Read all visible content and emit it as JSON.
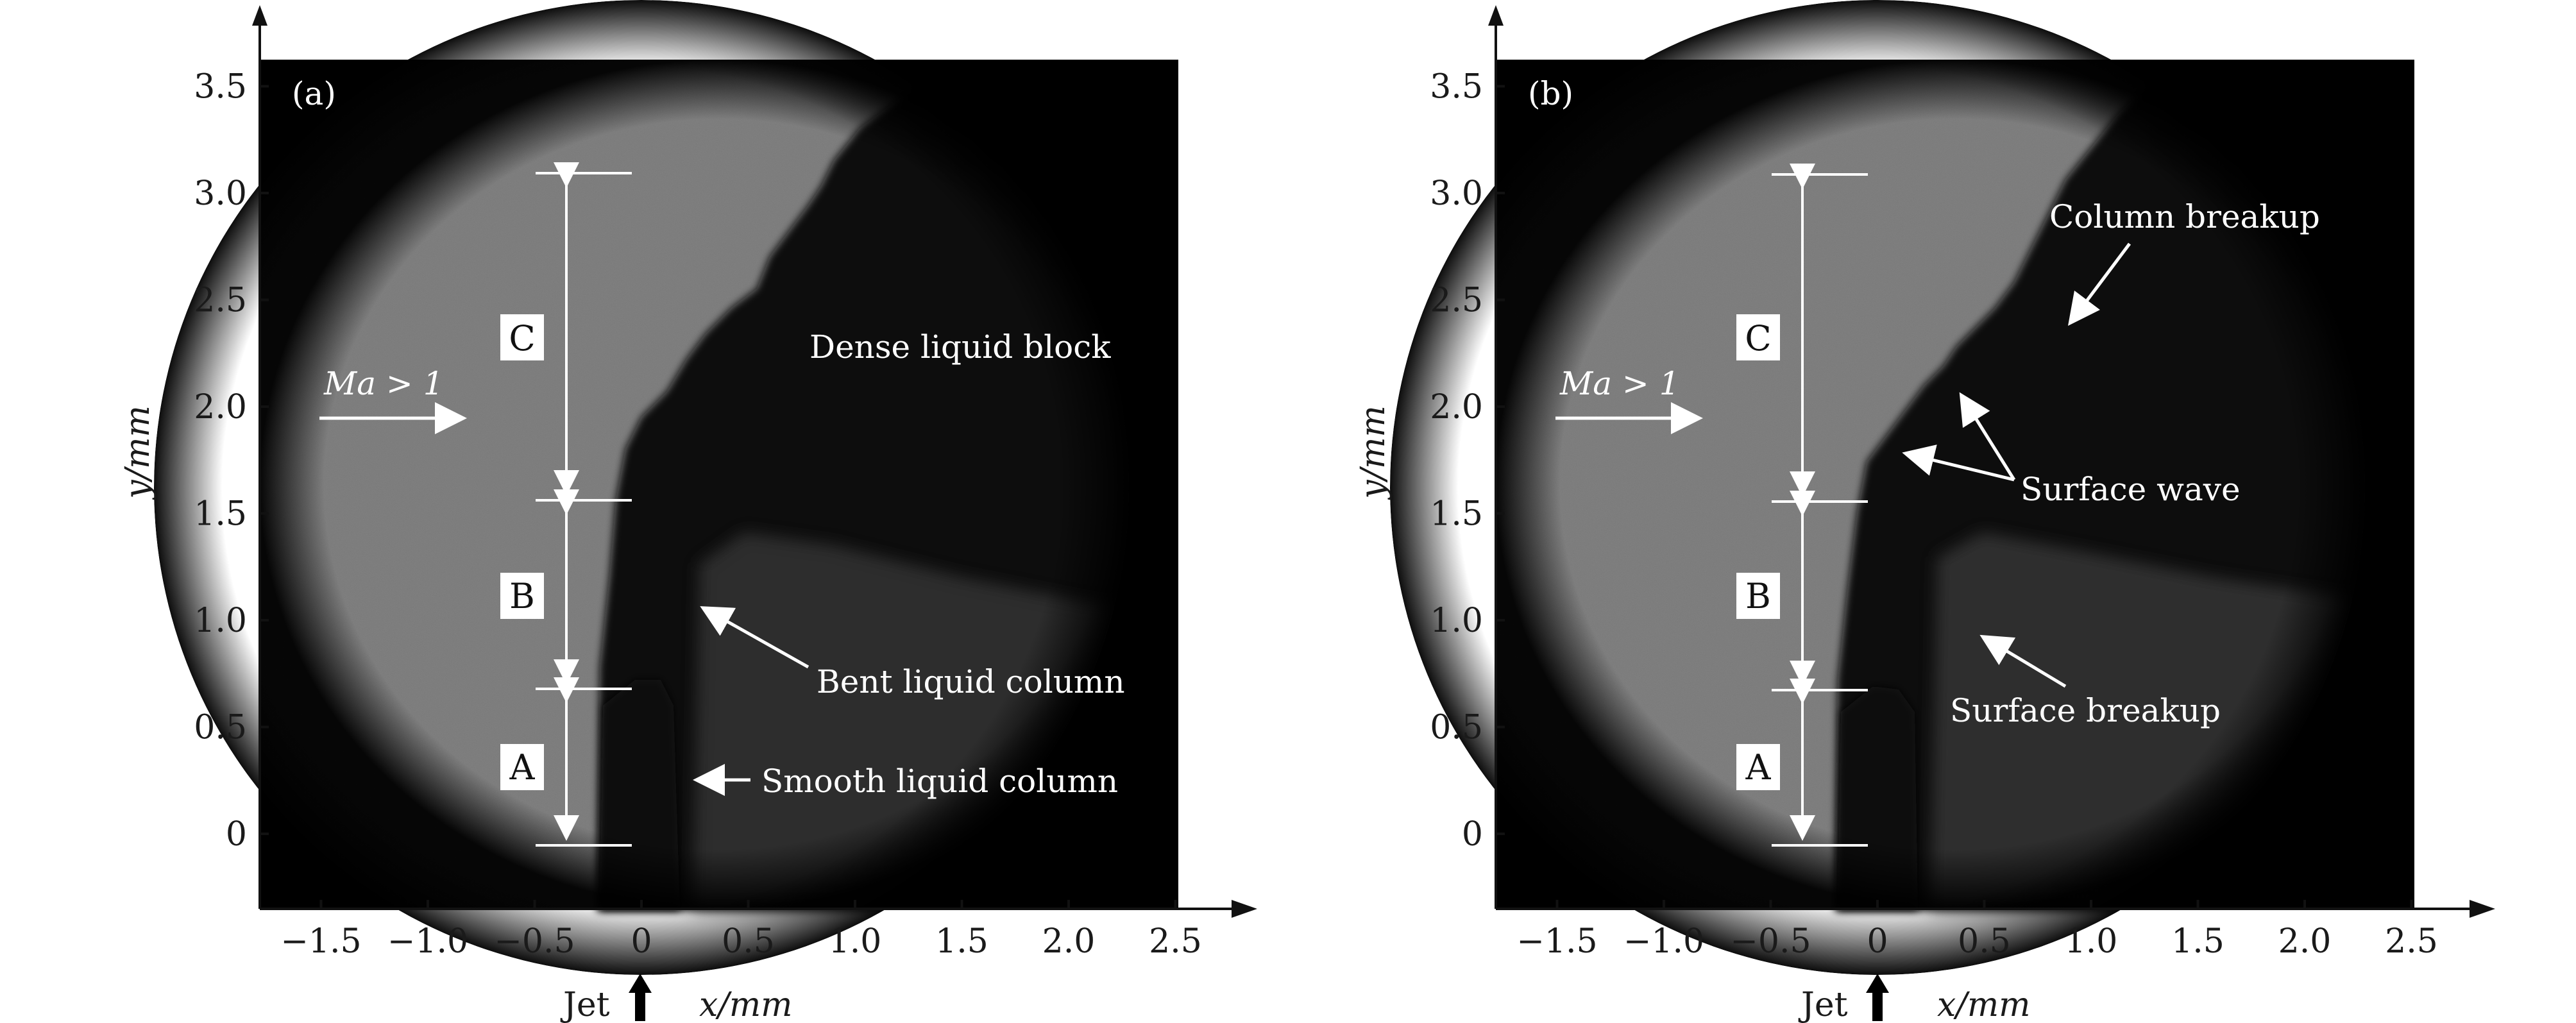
{
  "panels": [
    {
      "id": "a",
      "panel_label": "(a)",
      "ylabel": "y/mm",
      "xlabel": "x/mm",
      "jet_label": "Jet",
      "flow_label": "Ma > 1",
      "x_ticks": [
        "−1.5",
        "−1.0",
        "−0.5",
        "0",
        "0.5",
        "1.0",
        "1.5",
        "2.0",
        "2.5"
      ],
      "y_ticks": [
        "0",
        "0.5",
        "1.0",
        "1.5",
        "2.0",
        "2.5",
        "3.0",
        "3.5"
      ],
      "zones": [
        "A",
        "B",
        "C"
      ],
      "annotations": [
        "Dense liquid block",
        "Bent liquid column",
        "Smooth liquid column"
      ]
    },
    {
      "id": "b",
      "panel_label": "(b)",
      "ylabel": "y/mm",
      "xlabel": "x/mm",
      "jet_label": "Jet",
      "flow_label": "Ma > 1",
      "x_ticks": [
        "−1.5",
        "−1.0",
        "−0.5",
        "0",
        "0.5",
        "1.0",
        "1.5",
        "2.0",
        "2.5"
      ],
      "y_ticks": [
        "0",
        "0.5",
        "1.0",
        "1.5",
        "2.0",
        "2.5",
        "3.0",
        "3.5"
      ],
      "zones": [
        "A",
        "B",
        "C"
      ],
      "annotations": [
        "Column breakup",
        "Surface wave",
        "Surface breakup"
      ]
    }
  ],
  "colors": {
    "background": "#000000",
    "lit_region": "#8a8a8a",
    "annotation": "#ffffff"
  }
}
